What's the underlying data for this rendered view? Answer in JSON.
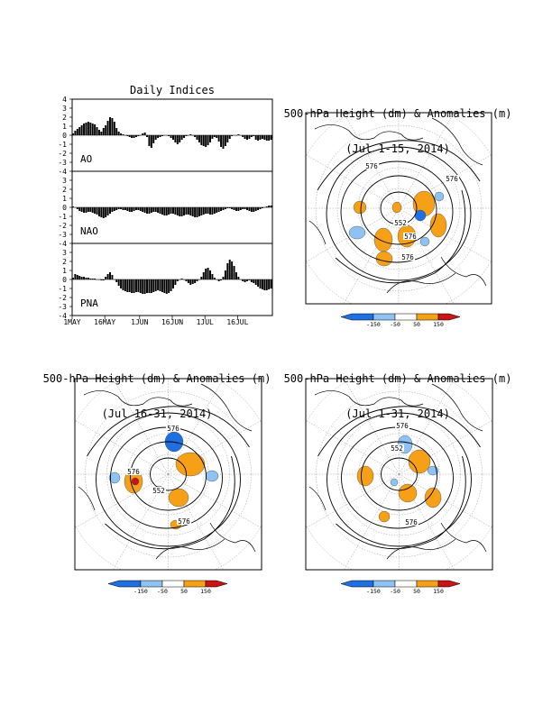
{
  "indices": {
    "title": "Daily Indices",
    "x_tick_labels": [
      "1MAY",
      "16MAY",
      "1JUN",
      "16JUN",
      "1JUL",
      "16JUL"
    ],
    "y_tick_labels": [
      "4",
      "3",
      "2",
      "1",
      "0",
      "-1",
      "-2",
      "-3",
      "-4"
    ]
  },
  "maps": [
    {
      "title_line1": "500-hPa Height (dm) & Anomalies (m)",
      "title_line2": "(Jul 1-15, 2014)",
      "contour_labels": [
        "576",
        "576",
        "552",
        "576",
        "576"
      ]
    },
    {
      "title_line1": "500-hPa Height (dm) & Anomalies (m)",
      "title_line2": "(Jul 16-31, 2014)",
      "contour_labels": [
        "576",
        "576",
        "552",
        "576"
      ]
    },
    {
      "title_line1": "500-hPa Height (dm) & Anomalies (m)",
      "title_line2": "(Jul 1-31, 2014)",
      "contour_labels": [
        "576",
        "552",
        "576"
      ]
    }
  ],
  "colorbar": {
    "labels": [
      "-150",
      "-50",
      "50",
      "150"
    ],
    "colors": {
      "strong_negative": "#1e6fe0",
      "negative": "#8ec2f2",
      "neutral": "#ffffff",
      "positive": "#f5a016",
      "strong_positive": "#c81414"
    }
  },
  "chart_data": [
    {
      "type": "bar",
      "title": "Daily Indices",
      "panel_label": "AO",
      "ylim": [
        -4,
        4
      ],
      "x_start": "2014-05-01",
      "x_end": "2014-07-31",
      "values": [
        0.2,
        0.5,
        0.7,
        0.9,
        1.1,
        1.3,
        1.4,
        1.5,
        1.4,
        1.3,
        1.2,
        0.9,
        0.6,
        0.4,
        0.8,
        1.1,
        1.6,
        2.0,
        1.9,
        1.5,
        0.8,
        0.4,
        0.2,
        0.1,
        0.0,
        -0.1,
        -0.2,
        -0.3,
        -0.3,
        -0.2,
        -0.1,
        0.0,
        0.2,
        0.3,
        -0.2,
        -1.2,
        -1.4,
        -0.9,
        -0.5,
        -0.3,
        -0.2,
        -0.1,
        0.0,
        0.0,
        -0.1,
        -0.3,
        -0.5,
        -0.8,
        -1.0,
        -0.8,
        -0.5,
        -0.3,
        -0.1,
        0.0,
        0.1,
        0.0,
        -0.2,
        -0.5,
        -0.8,
        -1.1,
        -1.2,
        -1.3,
        -1.1,
        -0.8,
        -0.4,
        -0.2,
        -0.3,
        -0.7,
        -1.3,
        -1.5,
        -1.2,
        -0.8,
        -0.4,
        -0.1,
        0.0,
        0.0,
        0.1,
        0.0,
        -0.2,
        -0.4,
        -0.5,
        -0.4,
        -0.2,
        -0.1,
        -0.5,
        -0.6,
        -0.5,
        -0.4,
        -0.5,
        -0.6,
        -0.6,
        -0.5
      ]
    },
    {
      "type": "bar",
      "panel_label": "NAO",
      "ylim": [
        -4,
        4
      ],
      "values": [
        0.1,
        0.0,
        -0.2,
        -0.4,
        -0.5,
        -0.6,
        -0.6,
        -0.5,
        -0.5,
        -0.6,
        -0.7,
        -0.8,
        -1.0,
        -1.1,
        -1.2,
        -1.1,
        -0.9,
        -0.7,
        -0.5,
        -0.4,
        -0.3,
        -0.2,
        -0.2,
        -0.3,
        -0.3,
        -0.4,
        -0.5,
        -0.5,
        -0.4,
        -0.3,
        -0.3,
        -0.4,
        -0.5,
        -0.6,
        -0.7,
        -0.7,
        -0.6,
        -0.5,
        -0.5,
        -0.6,
        -0.7,
        -0.8,
        -0.9,
        -0.9,
        -0.8,
        -0.7,
        -0.7,
        -0.8,
        -0.9,
        -1.0,
        -1.0,
        -0.9,
        -0.8,
        -0.8,
        -0.9,
        -1.0,
        -1.1,
        -1.1,
        -1.0,
        -0.9,
        -0.8,
        -0.7,
        -0.7,
        -0.8,
        -0.8,
        -0.7,
        -0.6,
        -0.5,
        -0.4,
        -0.3,
        -0.2,
        -0.1,
        -0.1,
        -0.2,
        -0.3,
        -0.4,
        -0.4,
        -0.3,
        -0.2,
        -0.2,
        -0.3,
        -0.4,
        -0.5,
        -0.5,
        -0.4,
        -0.3,
        -0.2,
        -0.1,
        0.0,
        0.1,
        0.2,
        0.2
      ]
    },
    {
      "type": "bar",
      "panel_label": "PNA",
      "ylim": [
        -4,
        4
      ],
      "values": [
        0.2,
        0.6,
        0.5,
        0.4,
        0.3,
        0.3,
        0.2,
        0.2,
        0.1,
        0.1,
        0.1,
        0.0,
        0.0,
        -0.1,
        -0.1,
        0.3,
        0.6,
        0.8,
        0.5,
        0.0,
        -0.3,
        -0.7,
        -1.0,
        -1.2,
        -1.3,
        -1.4,
        -1.4,
        -1.5,
        -1.5,
        -1.4,
        -1.4,
        -1.5,
        -1.6,
        -1.6,
        -1.5,
        -1.5,
        -1.5,
        -1.4,
        -1.3,
        -1.2,
        -1.3,
        -1.4,
        -1.5,
        -1.6,
        -1.5,
        -1.3,
        -1.0,
        -0.6,
        -0.2,
        0.0,
        0.1,
        0.0,
        -0.2,
        -0.4,
        -0.6,
        -0.5,
        -0.4,
        -0.2,
        0.0,
        0.3,
        0.8,
        1.2,
        1.3,
        1.0,
        0.6,
        0.2,
        0.0,
        -0.2,
        -0.1,
        0.3,
        1.0,
        1.8,
        2.2,
        2.0,
        1.5,
        0.8,
        0.3,
        0.0,
        -0.2,
        -0.3,
        -0.2,
        -0.1,
        -0.3,
        -0.4,
        -0.6,
        -0.8,
        -1.0,
        -1.1,
        -1.2,
        -1.2,
        -1.1,
        -1.0
      ]
    }
  ]
}
